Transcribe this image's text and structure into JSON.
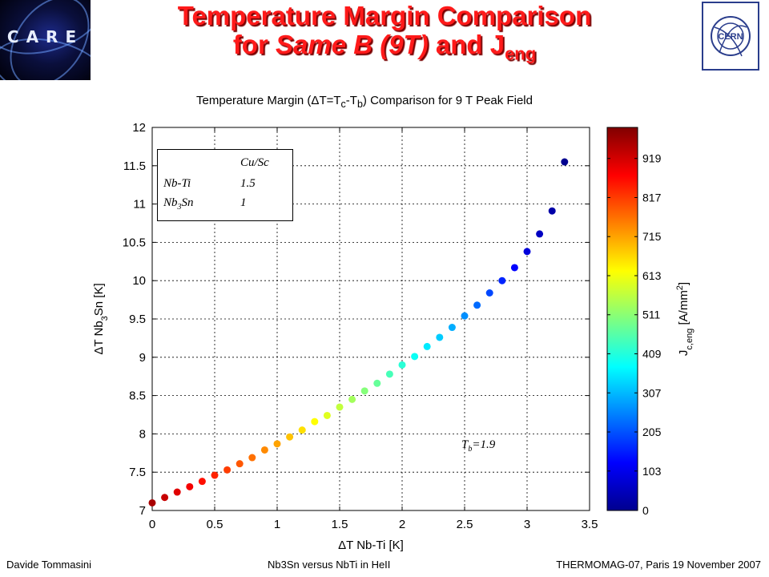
{
  "slide": {
    "title_line1": "Temperature Margin Comparison",
    "title_line2_pre": "for ",
    "title_line2_italic": "Same B (9T)",
    "title_line2_mid": " and J",
    "title_line2_sub": "eng",
    "logo_left_text": "CARE",
    "logo_right_text": "CERN"
  },
  "footer": {
    "left": "Davide Tommasini",
    "center": "Nb3Sn versus NbTi in HeII",
    "right": "THERMOMAG-07, Paris 19 November 2007"
  },
  "legend": {
    "header": "Cu/Sc",
    "row1_name": "Nb-Ti",
    "row1_value": "1.5",
    "row2_name_pre": "Nb",
    "row2_name_sub": "3",
    "row2_name_post": "Sn",
    "row2_value": "1"
  },
  "annotation": {
    "tb_pre": "T",
    "tb_sub": "b",
    "tb_post": "=1.9"
  },
  "chart_data": {
    "type": "scatter",
    "title_parts": {
      "pre": "Temperature Margin (",
      "delta": "Δ",
      "mid1": "T=T",
      "sub1": "c",
      "mid2": "-T",
      "sub2": "b",
      "post": ") Comparison for 9 T Peak Field"
    },
    "xlabel": "ΔT Nb-Ti [K]",
    "ylabel_parts": {
      "pre": "ΔT Nb",
      "sub": "3",
      "post": "Sn [K]"
    },
    "xlim": [
      0,
      3.5
    ],
    "ylim": [
      7,
      12
    ],
    "x_ticks": [
      0,
      0.5,
      1,
      1.5,
      2,
      2.5,
      3,
      3.5
    ],
    "x_tick_labels": [
      "0",
      "0.5",
      "1",
      "1.5",
      "2",
      "2.5",
      "3",
      "3.5"
    ],
    "y_ticks": [
      7,
      7.5,
      8,
      8.5,
      9,
      9.5,
      10,
      10.5,
      11,
      11.5,
      12
    ],
    "y_tick_labels": [
      "7",
      "7.5",
      "8",
      "8.5",
      "9",
      "9.5",
      "10",
      "10.5",
      "11",
      "11.5",
      "12"
    ],
    "grid": true,
    "colorbar": {
      "label_pre": "J",
      "label_sub": "c,eng",
      "label_post": " [A/mm",
      "label_sup": "2",
      "label_end": "]",
      "min": 0,
      "max": 1000,
      "ticks": [
        0,
        103,
        205,
        307,
        409,
        511,
        613,
        715,
        817,
        919
      ],
      "tick_labels": [
        "0",
        "103",
        "205",
        "307",
        "409",
        "511",
        "613",
        "715",
        "817",
        "919"
      ],
      "colormap": "jet"
    },
    "points": [
      {
        "x": 0.0,
        "y": 7.1,
        "c": 960
      },
      {
        "x": 0.1,
        "y": 7.17,
        "c": 930
      },
      {
        "x": 0.2,
        "y": 7.24,
        "c": 905
      },
      {
        "x": 0.3,
        "y": 7.31,
        "c": 885
      },
      {
        "x": 0.4,
        "y": 7.38,
        "c": 860
      },
      {
        "x": 0.5,
        "y": 7.46,
        "c": 840
      },
      {
        "x": 0.6,
        "y": 7.53,
        "c": 815
      },
      {
        "x": 0.7,
        "y": 7.61,
        "c": 790
      },
      {
        "x": 0.8,
        "y": 7.69,
        "c": 765
      },
      {
        "x": 0.9,
        "y": 7.79,
        "c": 740
      },
      {
        "x": 1.0,
        "y": 7.87,
        "c": 715
      },
      {
        "x": 1.1,
        "y": 7.96,
        "c": 685
      },
      {
        "x": 1.2,
        "y": 8.05,
        "c": 655
      },
      {
        "x": 1.3,
        "y": 8.16,
        "c": 625
      },
      {
        "x": 1.4,
        "y": 8.24,
        "c": 595
      },
      {
        "x": 1.5,
        "y": 8.35,
        "c": 565
      },
      {
        "x": 1.6,
        "y": 8.45,
        "c": 535
      },
      {
        "x": 1.7,
        "y": 8.56,
        "c": 505
      },
      {
        "x": 1.8,
        "y": 8.66,
        "c": 475
      },
      {
        "x": 1.9,
        "y": 8.78,
        "c": 445
      },
      {
        "x": 2.0,
        "y": 8.9,
        "c": 415
      },
      {
        "x": 2.1,
        "y": 9.01,
        "c": 385
      },
      {
        "x": 2.2,
        "y": 9.14,
        "c": 355
      },
      {
        "x": 2.3,
        "y": 9.26,
        "c": 325
      },
      {
        "x": 2.4,
        "y": 9.39,
        "c": 295
      },
      {
        "x": 2.5,
        "y": 9.54,
        "c": 265
      },
      {
        "x": 2.6,
        "y": 9.68,
        "c": 230
      },
      {
        "x": 2.7,
        "y": 9.84,
        "c": 195
      },
      {
        "x": 2.8,
        "y": 10.0,
        "c": 160
      },
      {
        "x": 2.9,
        "y": 10.17,
        "c": 125
      },
      {
        "x": 3.0,
        "y": 10.38,
        "c": 90
      },
      {
        "x": 3.1,
        "y": 10.61,
        "c": 65
      },
      {
        "x": 3.2,
        "y": 10.91,
        "c": 40
      },
      {
        "x": 3.3,
        "y": 11.55,
        "c": 15
      }
    ]
  }
}
